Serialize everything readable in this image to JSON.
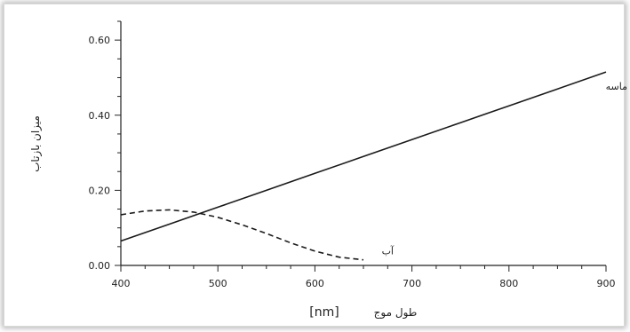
{
  "chart_data": {
    "type": "line",
    "title": "",
    "xlabel": "طول موج",
    "xlabel_unit": "[nm]",
    "ylabel": "میزان بازتاب",
    "xlim": [
      400,
      900
    ],
    "ylim": [
      0,
      0.65
    ],
    "x_ticks": [
      400,
      500,
      600,
      700,
      800,
      900
    ],
    "y_ticks": [
      0.0,
      0.2,
      0.4,
      0.6
    ],
    "y_tick_labels": [
      "0.00",
      "0.20",
      "0.40",
      "0.60"
    ],
    "grid": false,
    "legend": "none",
    "series": [
      {
        "name": "ماسه",
        "style": "solid",
        "color": "#1a1a1a",
        "x": [
          400,
          450,
          500,
          550,
          600,
          650,
          700,
          750,
          800,
          850,
          900
        ],
        "y": [
          0.065,
          0.11,
          0.155,
          0.2,
          0.245,
          0.29,
          0.335,
          0.38,
          0.425,
          0.47,
          0.515
        ]
      },
      {
        "name": "آب",
        "style": "dashed",
        "color": "#1a1a1a",
        "x": [
          400,
          425,
          450,
          475,
          500,
          525,
          550,
          575,
          600,
          625,
          650
        ],
        "y": [
          0.135,
          0.145,
          0.148,
          0.142,
          0.128,
          0.108,
          0.085,
          0.06,
          0.038,
          0.022,
          0.015
        ]
      }
    ]
  }
}
